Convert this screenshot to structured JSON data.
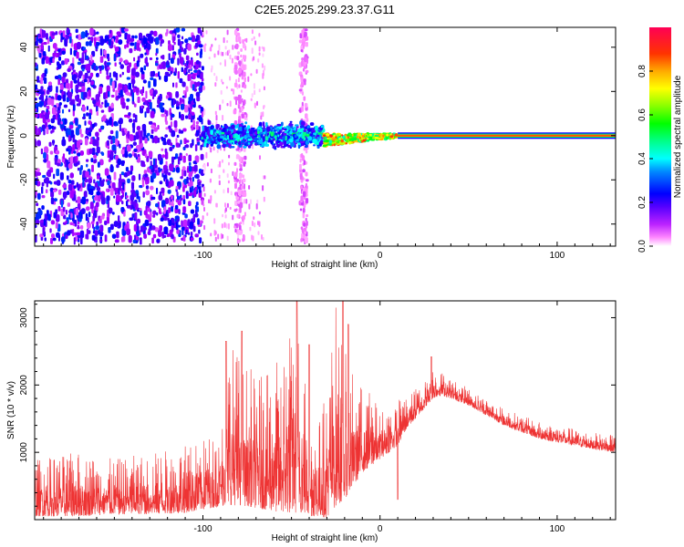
{
  "title": "C2E5.2025.299.23.37.G11",
  "chart_data": [
    {
      "type": "heatmap",
      "title": "C2E5.2025.299.23.37.G11",
      "xlabel": "Height of straight line (km)",
      "ylabel": "Frequency (Hz)",
      "xlim": [
        -195,
        133
      ],
      "ylim": [
        -50,
        49
      ],
      "xticks": [
        -100,
        0,
        100
      ],
      "yticks": [
        -40,
        -20,
        0,
        20,
        40
      ],
      "xtick_labels": [
        "-100",
        "0",
        "100"
      ],
      "ytick_labels": [
        "-40",
        "-20",
        "0",
        "20",
        "40"
      ],
      "colorbar": {
        "label": "Normalized spectral amplitude",
        "range": [
          0,
          1
        ],
        "ticks": [
          0.0,
          0.2,
          0.4,
          0.6,
          0.8
        ],
        "tick_labels": [
          "0.0",
          "0.2",
          "0.4",
          "0.6",
          "0.8"
        ],
        "colormap": [
          "#ffffff",
          "#ff88ff",
          "#aa00ff",
          "#5500ff",
          "#0000ff",
          "#0088ff",
          "#00ffff",
          "#00ff88",
          "#00ff00",
          "#88ff00",
          "#ffff00",
          "#ffaa00",
          "#ff3300",
          "#ff0044"
        ]
      },
      "regions": [
        {
          "name": "noise",
          "x_range": [
            -195,
            -100
          ],
          "freq_spread": 48,
          "amplitude": [
            0.1,
            0.35
          ]
        },
        {
          "name": "noise-curtain-1",
          "x_range": [
            -82,
            -76
          ],
          "freq_spread": 48,
          "amplitude": [
            0.05,
            0.12
          ]
        },
        {
          "name": "noise-curtain-2",
          "x_range": [
            -45,
            -41
          ],
          "freq_spread": 48,
          "amplitude": [
            0.05,
            0.12
          ]
        },
        {
          "name": "signal-scatter",
          "x_range": [
            -100,
            -32
          ],
          "freq_spread": 7,
          "amplitude": [
            0.2,
            0.6
          ]
        },
        {
          "name": "signal-converging",
          "x_range": [
            -32,
            10
          ],
          "freq_spread": 2,
          "amplitude": [
            0.5,
            0.95
          ]
        },
        {
          "name": "signal-steady",
          "x_range": [
            10,
            133
          ],
          "freq_center": 0,
          "amplitude": [
            0.85,
            0.95
          ]
        }
      ]
    },
    {
      "type": "line",
      "xlabel": "Height of straight line (km)",
      "ylabel": "SNR (10 * v/v)",
      "xlim": [
        -195,
        133
      ],
      "ylim": [
        0,
        3250
      ],
      "xticks": [
        -100,
        0,
        100
      ],
      "yticks": [
        1000,
        2000,
        3000
      ],
      "xtick_labels": [
        "-100",
        "0",
        "100"
      ],
      "ytick_labels": [
        "1000",
        "2000",
        "3000"
      ],
      "color": "#ee3333",
      "series": [
        {
          "name": "SNR",
          "envelope": {
            "x": [
              -195,
              -170,
              -150,
              -130,
              -110,
              -100,
              -90,
              -85,
              -75,
              -65,
              -55,
              -48,
              -44,
              -40,
              -36,
              -30,
              -25,
              -20,
              -15,
              -10,
              -5,
              0,
              5,
              10,
              15,
              20,
              25,
              30,
              35,
              40,
              50,
              60,
              70,
              80,
              90,
              100,
              110,
              120,
              133
            ],
            "low": [
              50,
              50,
              80,
              80,
              100,
              150,
              200,
              220,
              200,
              150,
              100,
              100,
              100,
              50,
              50,
              30,
              200,
              300,
              500,
              700,
              800,
              900,
              1000,
              1100,
              1350,
              1500,
              1650,
              1800,
              1850,
              1800,
              1700,
              1550,
              1400,
              1300,
              1200,
              1150,
              1100,
              1050,
              1000
            ],
            "high": [
              900,
              1000,
              900,
              1000,
              1100,
              1200,
              1400,
              2700,
              2300,
              2100,
              2500,
              3250,
              2600,
              1700,
              1300,
              2000,
              3250,
              2500,
              2200,
              2000,
              1900,
              1600,
              1700,
              1800,
              1850,
              1950,
              2050,
              2300,
              2200,
              2100,
              1950,
              1800,
              1650,
              1550,
              1450,
              1400,
              1350,
              1300,
              1250
            ]
          },
          "spikes": [
            {
              "x": -87,
              "y": 2650
            },
            {
              "x": -78,
              "y": 2800
            },
            {
              "x": -47,
              "y": 3250
            },
            {
              "x": -40,
              "y": 2600
            },
            {
              "x": -21,
              "y": 3250
            },
            {
              "x": -18,
              "y": 2900
            },
            {
              "x": 10,
              "y": 300
            },
            {
              "x": 29,
              "y": 2420
            }
          ]
        }
      ]
    }
  ]
}
